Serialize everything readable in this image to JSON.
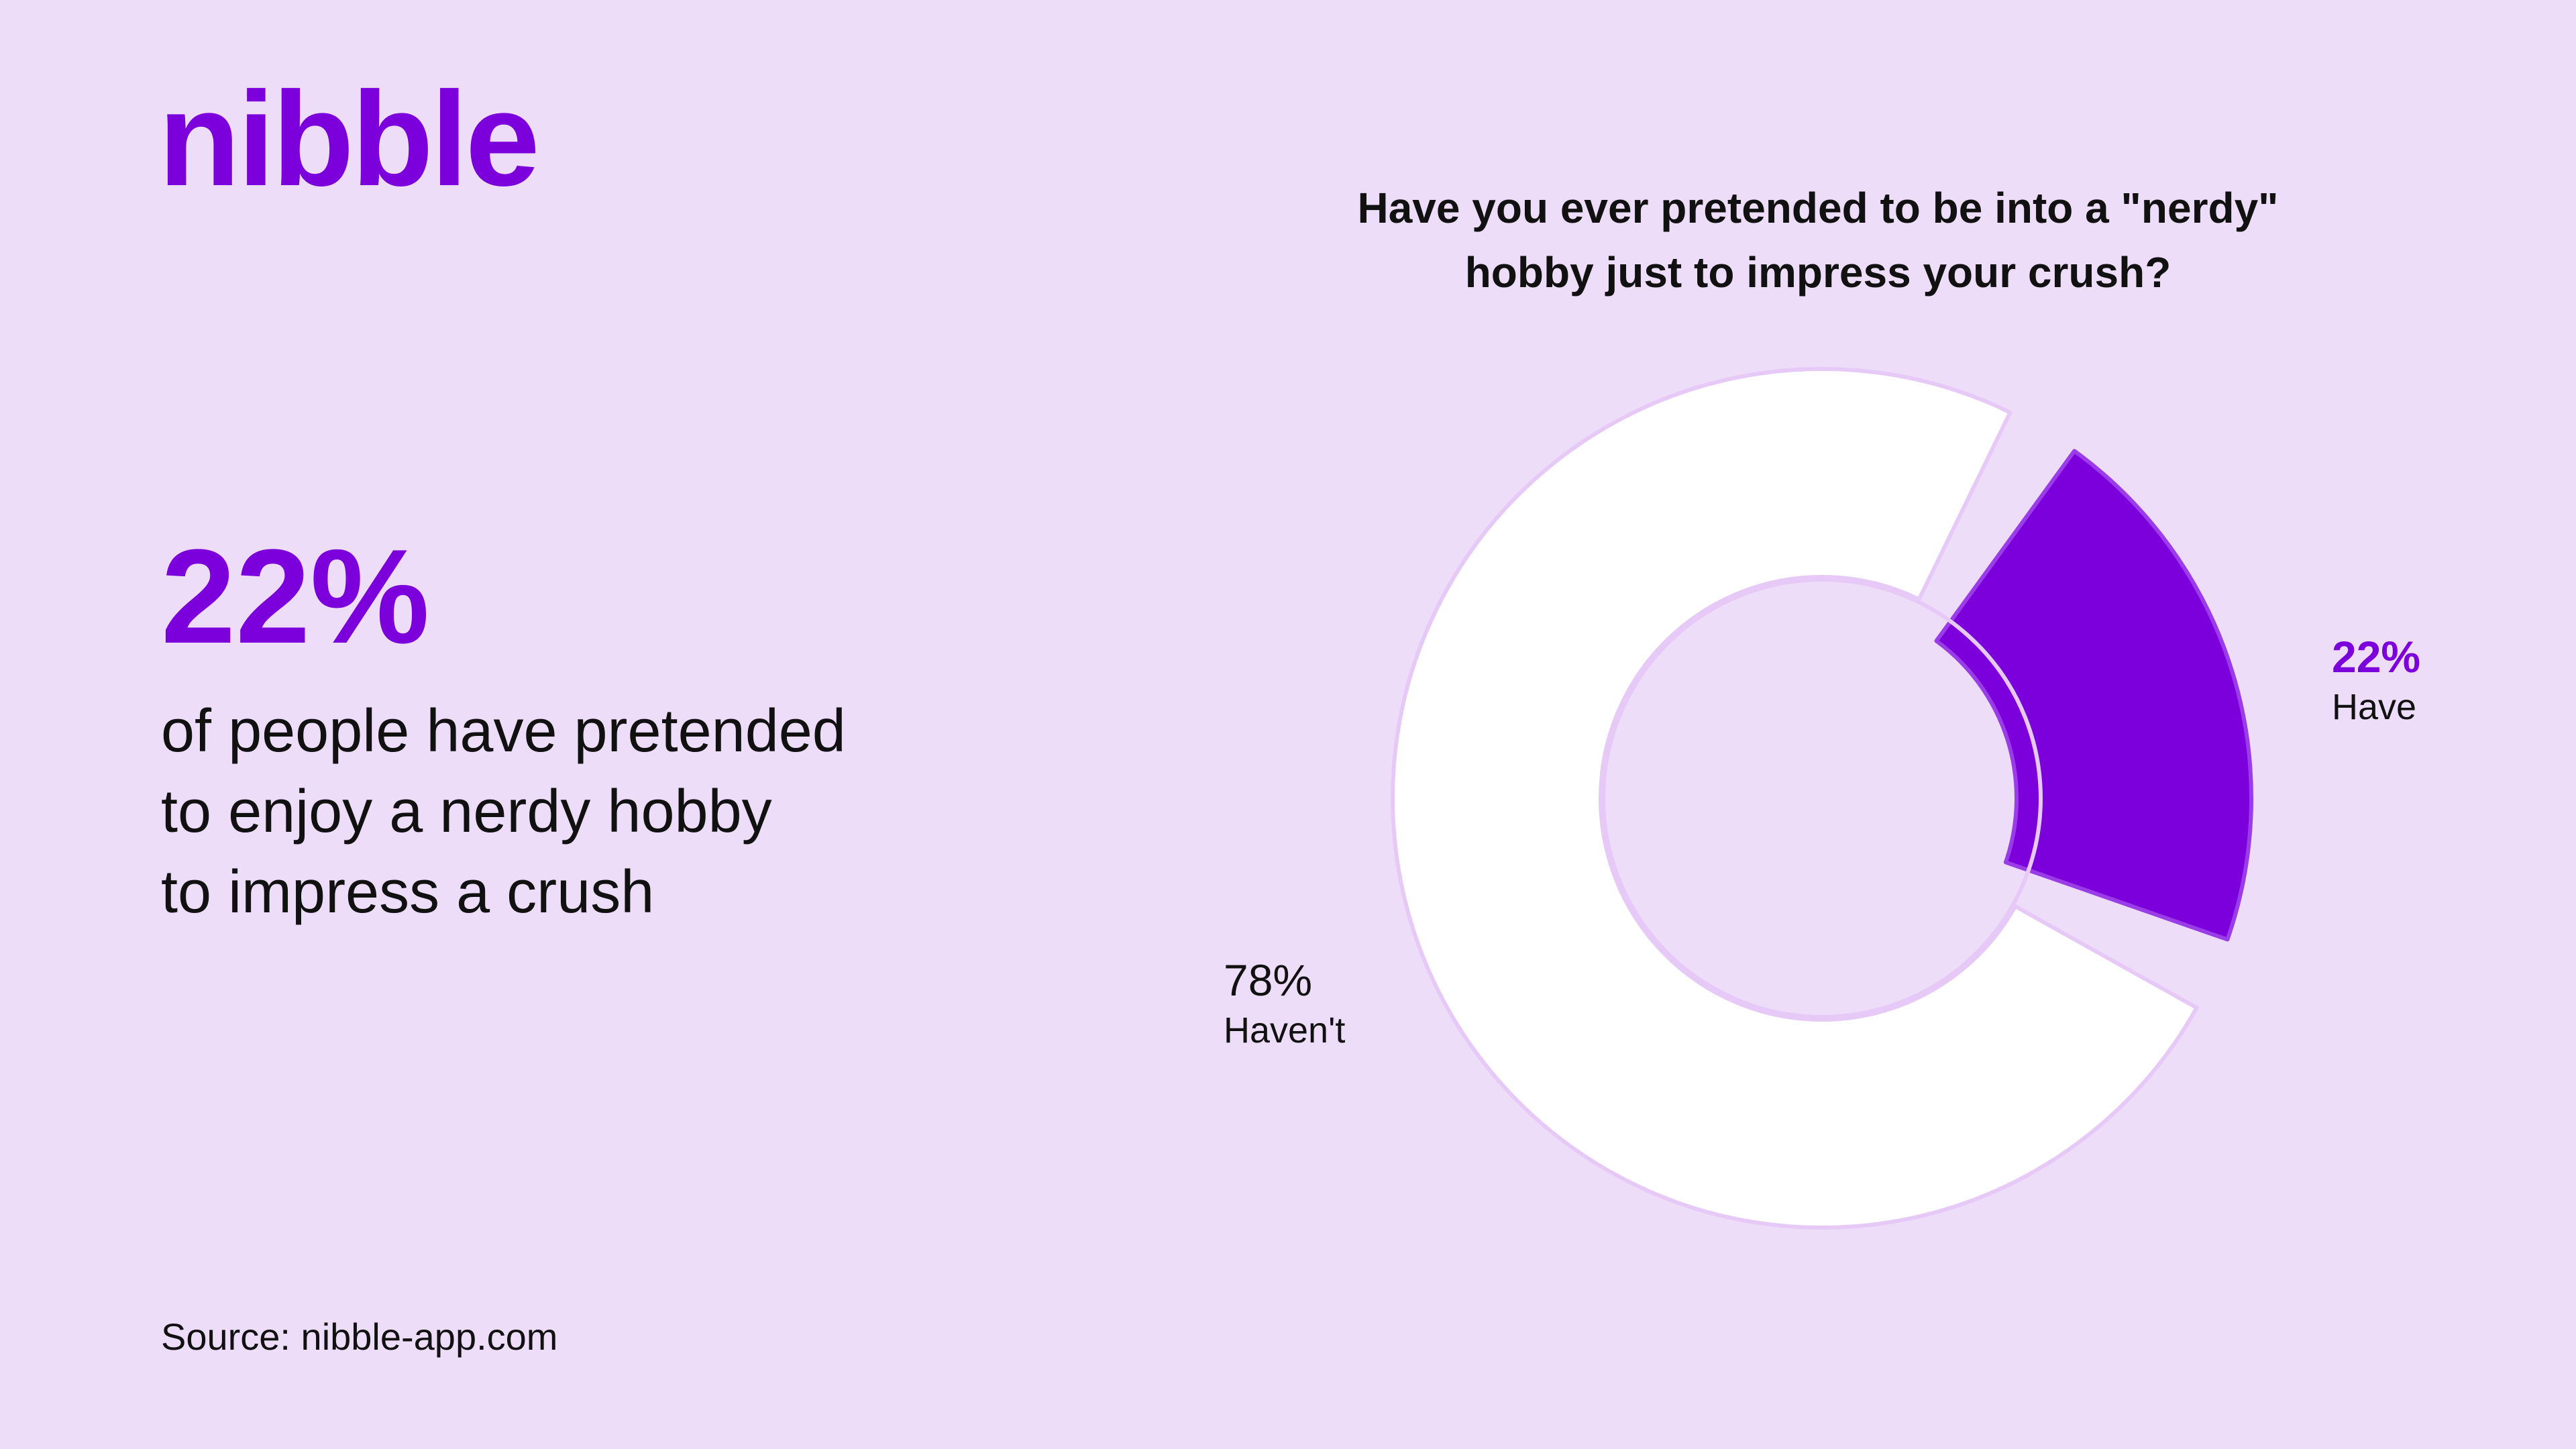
{
  "brand": {
    "logo_text": "nibble",
    "accent_color": "#7B00DB",
    "background_color": "#EEDDF9"
  },
  "headline": {
    "value": "22%",
    "lines": [
      "of people have pretended",
      "to enjoy a nerdy hobby",
      "to impress a crush"
    ]
  },
  "source": "Source: nibble-app.com",
  "chart_data": {
    "type": "pie",
    "variant": "donut",
    "title_lines": [
      "Have you ever pretended to be into a \"nerdy\"",
      "hobby just to impress your crush?"
    ],
    "categories": [
      "Have",
      "Haven't"
    ],
    "values": [
      22,
      78
    ],
    "unit": "%",
    "data_labels": [
      "22%",
      "78%"
    ],
    "colors": [
      "#7B00DB",
      "#FFFFFF"
    ],
    "legend": false
  }
}
